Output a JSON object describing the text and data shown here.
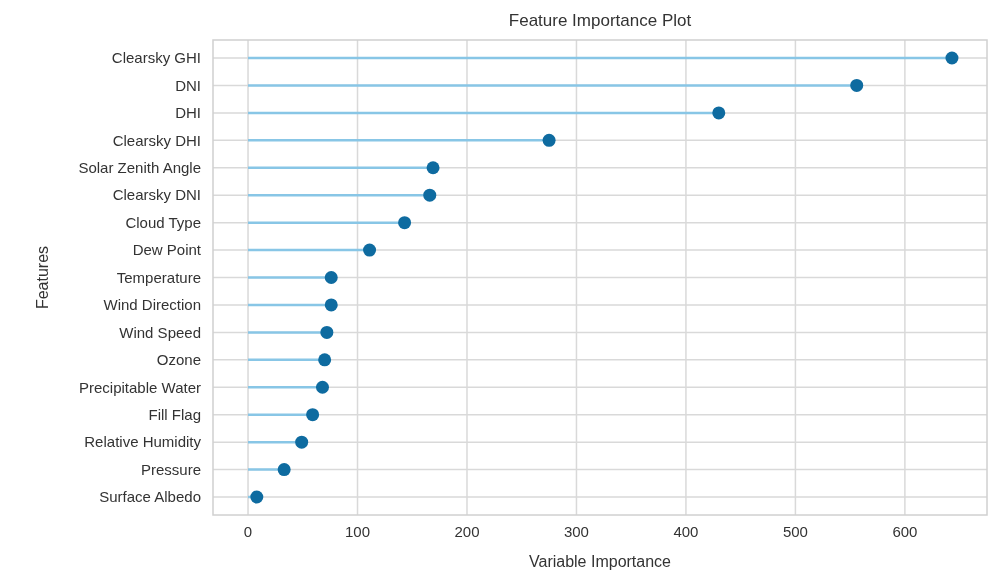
{
  "chart_data": {
    "type": "lollipop",
    "orientation": "horizontal",
    "title": "Feature Importance Plot",
    "xlabel": "Variable Importance",
    "ylabel": "Features",
    "categories": [
      "Clearsky GHI",
      "DNI",
      "DHI",
      "Clearsky DHI",
      "Solar Zenith Angle",
      "Clearsky DNI",
      "Cloud Type",
      "Dew Point",
      "Temperature",
      "Wind Direction",
      "Wind Speed",
      "Ozone",
      "Precipitable Water",
      "Fill Flag",
      "Relative Humidity",
      "Pressure",
      "Surface Albedo"
    ],
    "series": [
      {
        "color": "#0e6ba0",
        "values": [
          643,
          556,
          430,
          275,
          169,
          166,
          143,
          111,
          76,
          76,
          72,
          70,
          68,
          59,
          49,
          33,
          8
        ]
      }
    ],
    "xlim": [
      -32,
      675
    ],
    "xticks": [
      0,
      100,
      200,
      300,
      400,
      500,
      600
    ],
    "grid": true,
    "marker": "circle"
  }
}
